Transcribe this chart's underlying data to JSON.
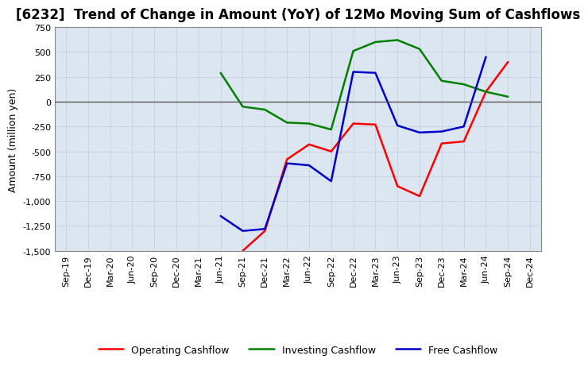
{
  "title": "[6232]  Trend of Change in Amount (YoY) of 12Mo Moving Sum of Cashflows",
  "ylabel": "Amount (million yen)",
  "x_labels": [
    "Sep-19",
    "Dec-19",
    "Mar-20",
    "Jun-20",
    "Sep-20",
    "Dec-20",
    "Mar-21",
    "Jun-21",
    "Sep-21",
    "Dec-21",
    "Mar-22",
    "Jun-22",
    "Sep-22",
    "Dec-22",
    "Mar-23",
    "Jun-23",
    "Sep-23",
    "Dec-23",
    "Mar-24",
    "Jun-24",
    "Sep-24",
    "Dec-24"
  ],
  "operating": [
    null,
    null,
    null,
    null,
    null,
    null,
    null,
    null,
    -1500,
    -1300,
    -580,
    -430,
    -500,
    -220,
    -230,
    -850,
    -950,
    -420,
    -400,
    100,
    400,
    null
  ],
  "investing": [
    null,
    null,
    null,
    null,
    null,
    null,
    null,
    290,
    -50,
    -80,
    -210,
    -220,
    -280,
    510,
    600,
    620,
    530,
    210,
    175,
    100,
    50,
    null
  ],
  "free": [
    null,
    null,
    null,
    null,
    null,
    null,
    null,
    -1150,
    -1300,
    -1280,
    -620,
    -640,
    -800,
    300,
    290,
    -240,
    -310,
    -300,
    -250,
    450,
    null,
    null
  ],
  "ylim": [
    -1500,
    750
  ],
  "yticks": [
    -1500,
    -1250,
    -1000,
    -750,
    -500,
    -250,
    0,
    250,
    500,
    750
  ],
  "operating_color": "#ff0000",
  "investing_color": "#008000",
  "free_color": "#0000cc",
  "bg_color": "#ffffff",
  "plot_bg_color": "#dce6f1",
  "grid_color": "#aaaacc",
  "zero_line_color": "#555555",
  "title_fontsize": 12,
  "axis_fontsize": 9,
  "tick_fontsize": 8,
  "legend_fontsize": 9
}
